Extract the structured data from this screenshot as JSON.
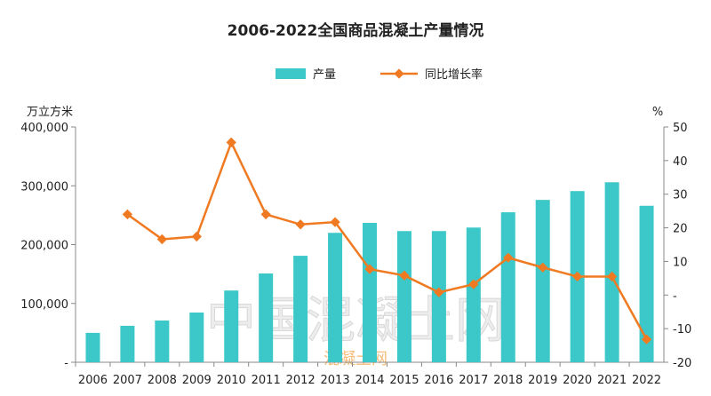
{
  "chart_data": {
    "type": "bar+line",
    "title": "2006-2022全国商品混凝土产量情况",
    "left_axis_label": "万立方米",
    "right_axis_label": "%",
    "categories": [
      "2006",
      "2007",
      "2008",
      "2009",
      "2010",
      "2011",
      "2012",
      "2013",
      "2014",
      "2015",
      "2016",
      "2017",
      "2018",
      "2019",
      "2020",
      "2021",
      "2022"
    ],
    "series": [
      {
        "name": "产量",
        "type": "bar",
        "axis": "left",
        "color": "#3cc8c8",
        "values": [
          50000,
          62000,
          71000,
          84500,
          122000,
          151000,
          181000,
          220000,
          237000,
          223000,
          223000,
          229000,
          255000,
          276000,
          291000,
          306000,
          266000
        ]
      },
      {
        "name": "同比增长率",
        "type": "line",
        "axis": "right",
        "color": "#f07a22",
        "values": [
          null,
          24.0,
          16.6,
          17.4,
          45.4,
          24.0,
          21.0,
          21.7,
          7.7,
          5.8,
          0.8,
          3.2,
          11.1,
          8.2,
          5.5,
          5.5,
          -13.2
        ]
      }
    ],
    "left_ylim": [
      0,
      400000
    ],
    "left_ticks": [
      "-",
      "100,000",
      "200,000",
      "300,000",
      "400,000"
    ],
    "right_ylim": [
      -20,
      50
    ],
    "right_ticks": [
      "-20",
      "-10",
      "-",
      "10",
      "20",
      "30",
      "40",
      "50"
    ],
    "legend_position": "top-center",
    "grid": false
  },
  "watermark": {
    "main": "中国混凝土网",
    "sub": "混凝土网"
  }
}
